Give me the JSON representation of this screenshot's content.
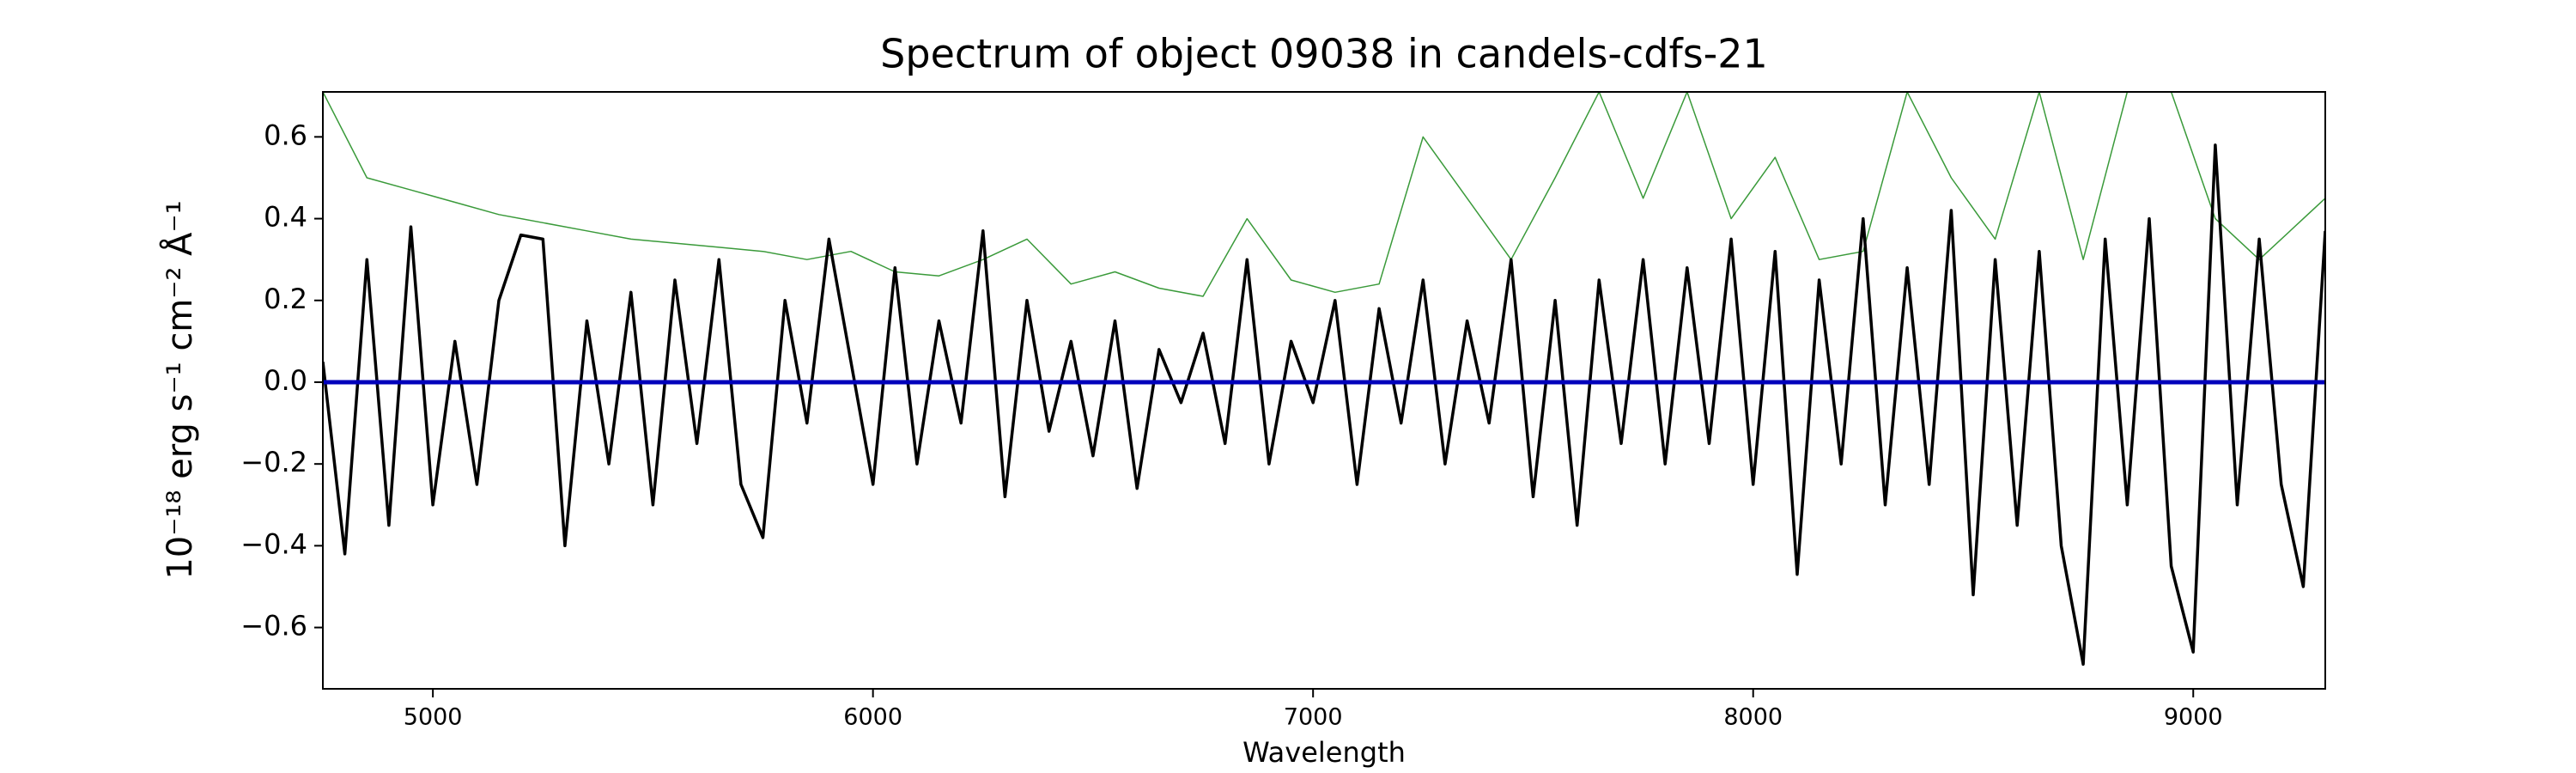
{
  "chart_data": {
    "type": "line",
    "title": "Spectrum of object 09038 in candels-cdfs-21",
    "x_label": "Wavelength",
    "y_label": "10⁻¹⁸ erg s⁻¹ cm⁻² Å⁻¹",
    "xlim": [
      4750,
      9300
    ],
    "ylim": [
      -0.75,
      0.71
    ],
    "xticks": [
      5000,
      6000,
      7000,
      8000,
      9000
    ],
    "yticks": [
      {
        "value": -0.6,
        "label": "−0.6"
      },
      {
        "value": -0.4,
        "label": "−0.4"
      },
      {
        "value": -0.2,
        "label": "−0.2"
      },
      {
        "value": 0,
        "label": "0.0"
      },
      0.2,
      0.4,
      0.6
    ],
    "series": [
      {
        "color": "#3a9a3a",
        "width": 1.5,
        "x": [
          4750,
          4850,
          4950,
          5050,
          5150,
          5250,
          5350,
          5450,
          5550,
          5650,
          5750,
          5850,
          5950,
          6050,
          6150,
          6250,
          6350,
          6450,
          6550,
          6650,
          6750,
          6850,
          6950,
          7050,
          7150,
          7250,
          7350,
          7450,
          7550,
          7650,
          7750,
          7850,
          7950,
          8050,
          8150,
          8250,
          8350,
          8450,
          8550,
          8650,
          8750,
          8850,
          8950,
          9050,
          9150,
          9250,
          9300
        ],
        "values": [
          0.71,
          0.5,
          0.47,
          0.44,
          0.41,
          0.39,
          0.37,
          0.35,
          0.34,
          0.33,
          0.32,
          0.3,
          0.32,
          0.27,
          0.26,
          0.3,
          0.35,
          0.24,
          0.27,
          0.23,
          0.21,
          0.4,
          0.25,
          0.22,
          0.24,
          0.6,
          0.45,
          0.3,
          0.5,
          0.71,
          0.45,
          0.71,
          0.4,
          0.55,
          0.3,
          0.32,
          0.71,
          0.5,
          0.35,
          0.71,
          0.3,
          0.71,
          0.71,
          0.4,
          0.3,
          0.4,
          0.45
        ]
      },
      {
        "color": "#000000",
        "width": 3.5,
        "x": [
          4750,
          4800,
          4850,
          4900,
          4950,
          5000,
          5050,
          5100,
          5150,
          5200,
          5250,
          5300,
          5350,
          5400,
          5450,
          5500,
          5550,
          5600,
          5650,
          5700,
          5750,
          5800,
          5850,
          5900,
          5950,
          6000,
          6050,
          6100,
          6150,
          6200,
          6250,
          6300,
          6350,
          6400,
          6450,
          6500,
          6550,
          6600,
          6650,
          6700,
          6750,
          6800,
          6850,
          6900,
          6950,
          7000,
          7050,
          7100,
          7150,
          7200,
          7250,
          7300,
          7350,
          7400,
          7450,
          7500,
          7550,
          7600,
          7650,
          7700,
          7750,
          7800,
          7850,
          7900,
          7950,
          8000,
          8050,
          8100,
          8150,
          8200,
          8250,
          8300,
          8350,
          8400,
          8450,
          8500,
          8550,
          8600,
          8650,
          8700,
          8750,
          8800,
          8850,
          8900,
          8950,
          9000,
          9050,
          9100,
          9150,
          9200,
          9250,
          9300
        ],
        "values": [
          0.05,
          -0.42,
          0.3,
          -0.35,
          0.38,
          -0.3,
          0.1,
          -0.25,
          0.2,
          0.36,
          0.35,
          -0.4,
          0.15,
          -0.2,
          0.22,
          -0.3,
          0.25,
          -0.15,
          0.3,
          -0.25,
          -0.38,
          0.2,
          -0.1,
          0.35,
          0.05,
          -0.25,
          0.28,
          -0.2,
          0.15,
          -0.1,
          0.37,
          -0.28,
          0.2,
          -0.12,
          0.1,
          -0.18,
          0.15,
          -0.26,
          0.08,
          -0.05,
          0.12,
          -0.15,
          0.3,
          -0.2,
          0.1,
          -0.05,
          0.2,
          -0.25,
          0.18,
          -0.1,
          0.25,
          -0.2,
          0.15,
          -0.1,
          0.3,
          -0.28,
          0.2,
          -0.35,
          0.25,
          -0.15,
          0.3,
          -0.2,
          0.28,
          -0.15,
          0.35,
          -0.25,
          0.32,
          -0.47,
          0.25,
          -0.2,
          0.4,
          -0.3,
          0.28,
          -0.25,
          0.42,
          -0.52,
          0.3,
          -0.35,
          0.32,
          -0.4,
          -0.69,
          0.35,
          -0.3,
          0.4,
          -0.45,
          -0.66,
          0.58,
          -0.3,
          0.35,
          -0.25,
          -0.5,
          0.37
        ]
      },
      {
        "color": "#0000bb",
        "width": 5,
        "x": [
          4750,
          9300
        ],
        "values": [
          0,
          0
        ]
      }
    ]
  }
}
